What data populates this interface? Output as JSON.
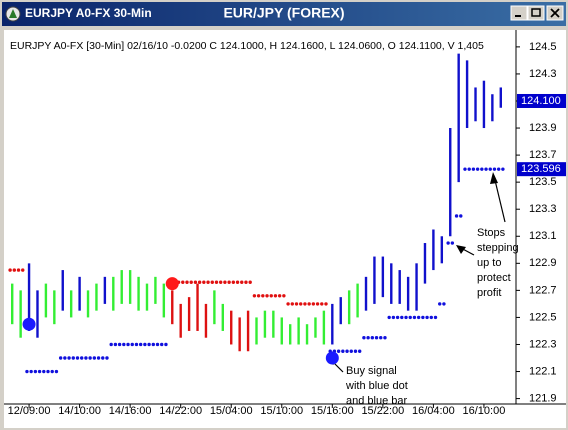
{
  "window": {
    "title": "EURJPY A0-FX 30-Min"
  },
  "chart_data": {
    "type": "hlbar",
    "title": "EUR/JPY (FOREX)",
    "header": "EURJPY A0-FX [30-Min] 02/16/10  -0.0200 C 124.1000, H 124.1600, L 124.0600, O 124.1100, V 1,405",
    "categories": [
      null,
      null,
      "12/09:00",
      null,
      null,
      null,
      null,
      null,
      "14/10:00",
      null,
      null,
      null,
      null,
      null,
      "14/16:00",
      null,
      null,
      null,
      null,
      null,
      "14/22:00",
      null,
      null,
      null,
      null,
      null,
      "15/04:00",
      null,
      null,
      null,
      null,
      null,
      "15/10:00",
      null,
      null,
      null,
      null,
      null,
      "15/16:00",
      null,
      null,
      null,
      null,
      null,
      "15/22:00",
      null,
      null,
      null,
      null,
      null,
      "16/04:00",
      null,
      null,
      null,
      null,
      null,
      "16/10:00",
      null,
      null
    ],
    "high": [
      122.75,
      122.7,
      122.9,
      122.7,
      122.75,
      122.7,
      122.85,
      122.7,
      122.8,
      122.7,
      122.75,
      122.8,
      122.8,
      122.85,
      122.85,
      122.8,
      122.75,
      122.8,
      122.75,
      122.7,
      122.6,
      122.65,
      122.75,
      122.6,
      122.7,
      122.6,
      122.55,
      122.5,
      122.55,
      122.5,
      122.55,
      122.55,
      122.5,
      122.45,
      122.5,
      122.45,
      122.5,
      122.55,
      122.6,
      122.65,
      122.7,
      122.75,
      122.8,
      122.95,
      122.95,
      122.9,
      122.85,
      122.8,
      122.9,
      123.05,
      123.15,
      123.1,
      123.9,
      124.45,
      124.4,
      124.2,
      124.25,
      124.15,
      124.2
    ],
    "low": [
      122.45,
      122.35,
      122.4,
      122.35,
      122.5,
      122.45,
      122.55,
      122.5,
      122.55,
      122.5,
      122.55,
      122.6,
      122.55,
      122.6,
      122.6,
      122.55,
      122.55,
      122.6,
      122.5,
      122.45,
      122.35,
      122.4,
      122.4,
      122.35,
      122.45,
      122.4,
      122.3,
      122.25,
      122.25,
      122.3,
      122.35,
      122.35,
      122.3,
      122.3,
      122.3,
      122.3,
      122.35,
      122.3,
      122.3,
      122.45,
      122.45,
      122.5,
      122.55,
      122.6,
      122.65,
      122.6,
      122.6,
      122.55,
      122.55,
      122.75,
      122.85,
      122.9,
      123.1,
      123.5,
      123.9,
      123.95,
      123.9,
      123.95,
      124.05
    ],
    "trend": [
      "g",
      "g",
      "b",
      "b",
      "g",
      "g",
      "b",
      "g",
      "b",
      "g",
      "g",
      "b",
      "g",
      "g",
      "g",
      "g",
      "g",
      "g",
      "g",
      "r",
      "r",
      "r",
      "r",
      "r",
      "g",
      "g",
      "r",
      "r",
      "r",
      "g",
      "g",
      "g",
      "g",
      "g",
      "g",
      "g",
      "g",
      "g",
      "b",
      "b",
      "g",
      "g",
      "b",
      "b",
      "b",
      "b",
      "b",
      "b",
      "b",
      "b",
      "b",
      "b",
      "b",
      "b",
      "b",
      "b",
      "b",
      "b",
      "b"
    ],
    "trend_colors": {
      "g": "#33ee33",
      "r": "#dd1111",
      "b": "#1010cc"
    },
    "sell_stops": {
      "color": "#e01010",
      "values": [
        122.85,
        122.85,
        null,
        null,
        null,
        null,
        null,
        null,
        null,
        null,
        null,
        null,
        null,
        null,
        null,
        null,
        null,
        null,
        null,
        122.76,
        122.76,
        122.76,
        122.76,
        122.76,
        122.76,
        122.76,
        122.76,
        122.76,
        122.76,
        122.66,
        122.66,
        122.66,
        122.66,
        122.6,
        122.6,
        122.6,
        122.6,
        122.6,
        null,
        null,
        null,
        null,
        null,
        null,
        null,
        null,
        null,
        null,
        null,
        null,
        null,
        null,
        null,
        null,
        null,
        null,
        null,
        null,
        null
      ]
    },
    "buy_stops": {
      "color": "#1010dd",
      "values": [
        null,
        null,
        122.1,
        122.1,
        122.1,
        122.1,
        122.2,
        122.2,
        122.2,
        122.2,
        122.2,
        122.2,
        122.3,
        122.3,
        122.3,
        122.3,
        122.3,
        122.3,
        122.3,
        null,
        null,
        null,
        null,
        null,
        null,
        null,
        null,
        null,
        null,
        null,
        null,
        null,
        null,
        null,
        null,
        null,
        null,
        null,
        122.25,
        122.25,
        122.25,
        122.25,
        122.35,
        122.35,
        122.35,
        122.5,
        122.5,
        122.5,
        122.5,
        122.5,
        122.5,
        122.6,
        123.05,
        123.25,
        123.596,
        123.596,
        123.596,
        123.596,
        123.596
      ]
    },
    "signals": [
      {
        "bar": 2,
        "value": 122.45,
        "color": "#1a1aff"
      },
      {
        "bar": 19,
        "value": 122.75,
        "color": "#ff1a1a"
      },
      {
        "bar": 38,
        "value": 122.2,
        "color": "#1a1aff"
      }
    ],
    "ylim": [
      121.86,
      124.61
    ],
    "yticks": [
      121.9,
      122.1,
      122.3,
      122.5,
      122.7,
      122.9,
      123.1,
      123.3,
      123.5,
      123.7,
      123.9,
      124.1,
      124.3,
      124.5
    ],
    "markers": [
      {
        "value": 124.1,
        "label": "124.100"
      },
      123.596
    ],
    "annotations": {
      "buy": [
        "Buy signal",
        "with blue dot",
        "and blue bar"
      ],
      "stops": [
        "Stops",
        "stepping",
        "up to",
        "protect",
        "profit"
      ]
    }
  }
}
